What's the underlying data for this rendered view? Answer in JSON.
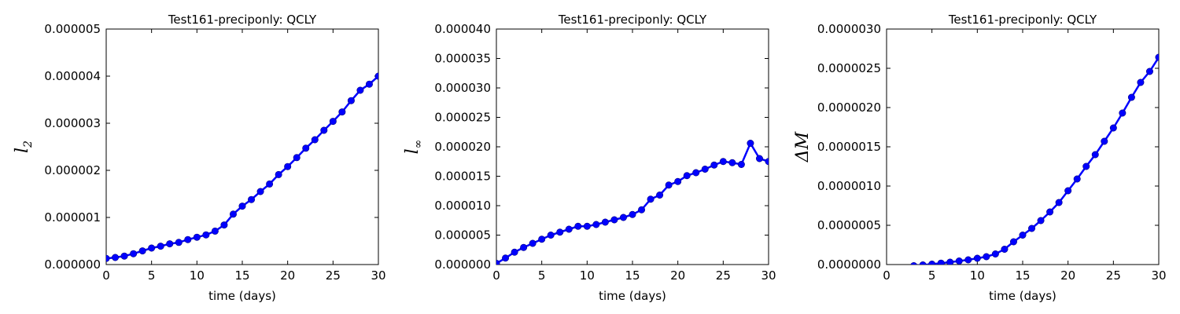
{
  "chart_data": [
    {
      "type": "line",
      "title": "Test161-preciponly: QCLY",
      "xlabel": "time (days)",
      "ylabel": "l",
      "ylabel_sub": "2",
      "xlim": [
        0,
        30
      ],
      "ylim": [
        0,
        5e-06
      ],
      "xticks": [
        0,
        5,
        10,
        15,
        20,
        25,
        30
      ],
      "xtick_labels": [
        "0",
        "5",
        "10",
        "15",
        "20",
        "25",
        "30"
      ],
      "yticks": [
        0,
        1e-06,
        2e-06,
        3e-06,
        4e-06,
        5e-06
      ],
      "ytick_labels": [
        "0.000000",
        "0.000001",
        "0.000002",
        "0.000003",
        "0.000004",
        "0.000005"
      ],
      "grid": false,
      "color": "#0000ff",
      "x": [
        0,
        1,
        2,
        3,
        4,
        5,
        6,
        7,
        8,
        9,
        10,
        11,
        12,
        13,
        14,
        15,
        16,
        17,
        18,
        19,
        20,
        21,
        22,
        23,
        24,
        25,
        26,
        27,
        28,
        29,
        30
      ],
      "y": [
        1.3e-07,
        1.5e-07,
        1.8e-07,
        2.3e-07,
        2.9e-07,
        3.5e-07,
        3.9e-07,
        4.4e-07,
        4.7e-07,
        5.3e-07,
        5.8e-07,
        6.3e-07,
        7.1e-07,
        8.4e-07,
        1.07e-06,
        1.24e-06,
        1.38e-06,
        1.55e-06,
        1.71e-06,
        1.91e-06,
        2.08e-06,
        2.27e-06,
        2.47e-06,
        2.65e-06,
        2.85e-06,
        3.04e-06,
        3.24e-06,
        3.48e-06,
        3.7e-06,
        3.83e-06,
        4e-06
      ]
    },
    {
      "type": "line",
      "title": "Test161-preciponly: QCLY",
      "xlabel": "time (days)",
      "ylabel": "l",
      "ylabel_sub": "∞",
      "xlim": [
        0,
        30
      ],
      "ylim": [
        0,
        4e-05
      ],
      "xticks": [
        0,
        5,
        10,
        15,
        20,
        25,
        30
      ],
      "xtick_labels": [
        "0",
        "5",
        "10",
        "15",
        "20",
        "25",
        "30"
      ],
      "yticks": [
        0,
        5e-06,
        1e-05,
        1.5e-05,
        2e-05,
        2.5e-05,
        3e-05,
        3.5e-05,
        4e-05
      ],
      "ytick_labels": [
        "0.000000",
        "0.000005",
        "0.000010",
        "0.000015",
        "0.000020",
        "0.000025",
        "0.000030",
        "0.000035",
        "0.000040"
      ],
      "grid": false,
      "color": "#0000ff",
      "x": [
        0,
        1,
        2,
        3,
        4,
        5,
        6,
        7,
        8,
        9,
        10,
        11,
        12,
        13,
        14,
        15,
        16,
        17,
        18,
        19,
        20,
        21,
        22,
        23,
        24,
        25,
        26,
        27,
        28,
        29,
        30
      ],
      "y": [
        2e-07,
        1.1e-06,
        2.1e-06,
        2.9e-06,
        3.6e-06,
        4.3e-06,
        5e-06,
        5.5e-06,
        6e-06,
        6.5e-06,
        6.5e-06,
        6.8e-06,
        7.2e-06,
        7.6e-06,
        8e-06,
        8.5e-06,
        9.3e-06,
        1.11e-05,
        1.18e-05,
        1.35e-05,
        1.41e-05,
        1.51e-05,
        1.56e-05,
        1.62e-05,
        1.69e-05,
        1.75e-05,
        1.73e-05,
        1.7e-05,
        2.06e-05,
        1.8e-05,
        1.75e-05
      ]
    },
    {
      "type": "line",
      "title": "Test161-preciponly: QCLY",
      "xlabel": "time (days)",
      "ylabel": "ΔM",
      "xlim": [
        0,
        30
      ],
      "ylim": [
        0,
        3e-06
      ],
      "xticks": [
        0,
        5,
        10,
        15,
        20,
        25,
        30
      ],
      "xtick_labels": [
        "0",
        "5",
        "10",
        "15",
        "20",
        "25",
        "30"
      ],
      "yticks": [
        0,
        5e-07,
        1e-06,
        1.5e-06,
        2e-06,
        2.5e-06,
        3e-06
      ],
      "ytick_labels": [
        "0.0000000",
        "0.0000005",
        "0.0000010",
        "0.0000015",
        "0.0000020",
        "0.0000025",
        "0.0000030"
      ],
      "grid": false,
      "color": "#0000ff",
      "x": [
        3,
        4,
        5,
        6,
        7,
        8,
        9,
        10,
        11,
        12,
        13,
        14,
        15,
        16,
        17,
        18,
        19,
        20,
        21,
        22,
        23,
        24,
        25,
        26,
        27,
        28,
        29,
        30
      ],
      "y": [
        -1.5e-08,
        -5e-09,
        5e-09,
        1.8e-08,
        3e-08,
        4.5e-08,
        6e-08,
        8e-08,
        1e-07,
        1.35e-07,
        1.95e-07,
        2.9e-07,
        3.75e-07,
        4.6e-07,
        5.6e-07,
        6.7e-07,
        7.9e-07,
        9.4e-07,
        1.09e-06,
        1.25e-06,
        1.4e-06,
        1.57e-06,
        1.74e-06,
        1.93e-06,
        2.13e-06,
        2.32e-06,
        2.46e-06,
        2.64e-06
      ]
    }
  ]
}
